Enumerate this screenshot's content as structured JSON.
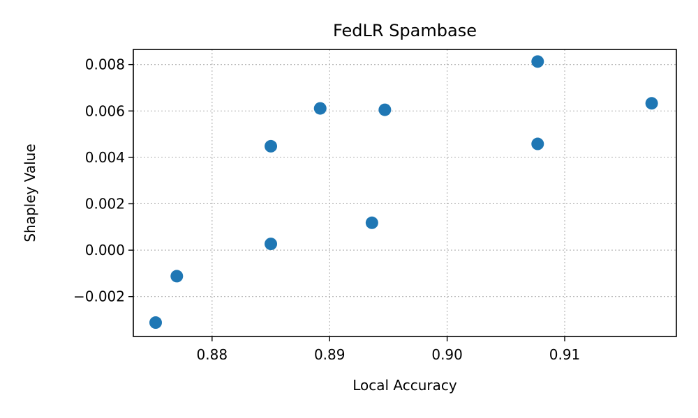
{
  "chart_data": {
    "type": "scatter",
    "title": "FedLR Spambase",
    "xlabel": "Local Accuracy",
    "ylabel": "Shapley Value",
    "xlim": [
      0.8733,
      0.9195
    ],
    "ylim": [
      -0.00372,
      0.00865
    ],
    "xticks": [
      0.88,
      0.89,
      0.9,
      0.91
    ],
    "xtick_labels": [
      "0.88",
      "0.89",
      "0.90",
      "0.91"
    ],
    "yticks": [
      -0.002,
      0.0,
      0.002,
      0.004,
      0.006,
      0.008
    ],
    "ytick_labels": [
      "−0.002",
      "0.000",
      "0.002",
      "0.004",
      "0.006",
      "0.008"
    ],
    "grid": true,
    "grid_style": "dotted",
    "legend": "none",
    "marker_color": "#1f77b4",
    "points": [
      {
        "x": 0.8752,
        "y": -0.00312
      },
      {
        "x": 0.877,
        "y": -0.00112
      },
      {
        "x": 0.885,
        "y": 0.00448
      },
      {
        "x": 0.885,
        "y": 0.00027
      },
      {
        "x": 0.8892,
        "y": 0.00611
      },
      {
        "x": 0.8936,
        "y": 0.00118
      },
      {
        "x": 0.8947,
        "y": 0.00605
      },
      {
        "x": 0.9077,
        "y": 0.00813
      },
      {
        "x": 0.9077,
        "y": 0.00458
      },
      {
        "x": 0.9174,
        "y": 0.00633
      }
    ]
  }
}
